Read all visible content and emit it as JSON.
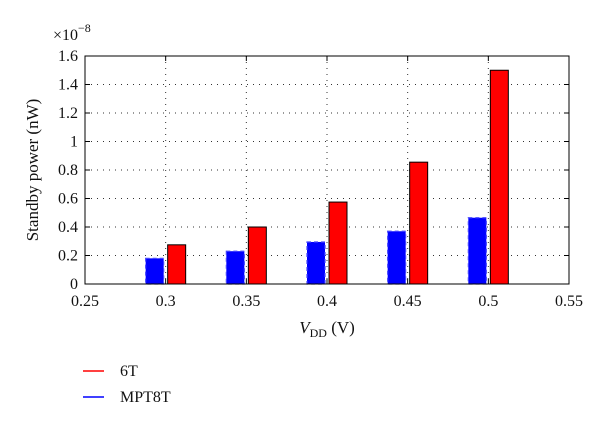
{
  "chart_data": {
    "type": "bar",
    "x": [
      0.3,
      0.35,
      0.4,
      0.45,
      0.5
    ],
    "series": [
      {
        "name": "MPT8T",
        "color": "#0000ff",
        "values": [
          0.18,
          0.23,
          0.295,
          0.37,
          0.465
        ]
      },
      {
        "name": "6T",
        "color": "#ff0000",
        "values": [
          0.275,
          0.4,
          0.575,
          0.855,
          1.5
        ]
      }
    ],
    "xlabel_main": "V",
    "xlabel_sub": "DD",
    "xlabel_unit": " (V)",
    "ylabel": "Standby power (nW)",
    "y_multiplier_base": "×10",
    "y_multiplier_exp": "−8",
    "xlim": [
      0.25,
      0.55
    ],
    "ylim": [
      0,
      1.6
    ],
    "xticks": [
      "0.25",
      "0.3",
      "0.35",
      "0.4",
      "0.45",
      "0.5",
      "0.55"
    ],
    "yticks": [
      "0",
      "0.2",
      "0.4",
      "0.6",
      "0.8",
      "1",
      "1.2",
      "1.4",
      "1.6"
    ],
    "grid": true,
    "legend_position": "below-left",
    "legend": [
      {
        "label": "6T",
        "color": "#ff0000"
      },
      {
        "label": "MPT8T",
        "color": "#0000ff"
      }
    ]
  }
}
